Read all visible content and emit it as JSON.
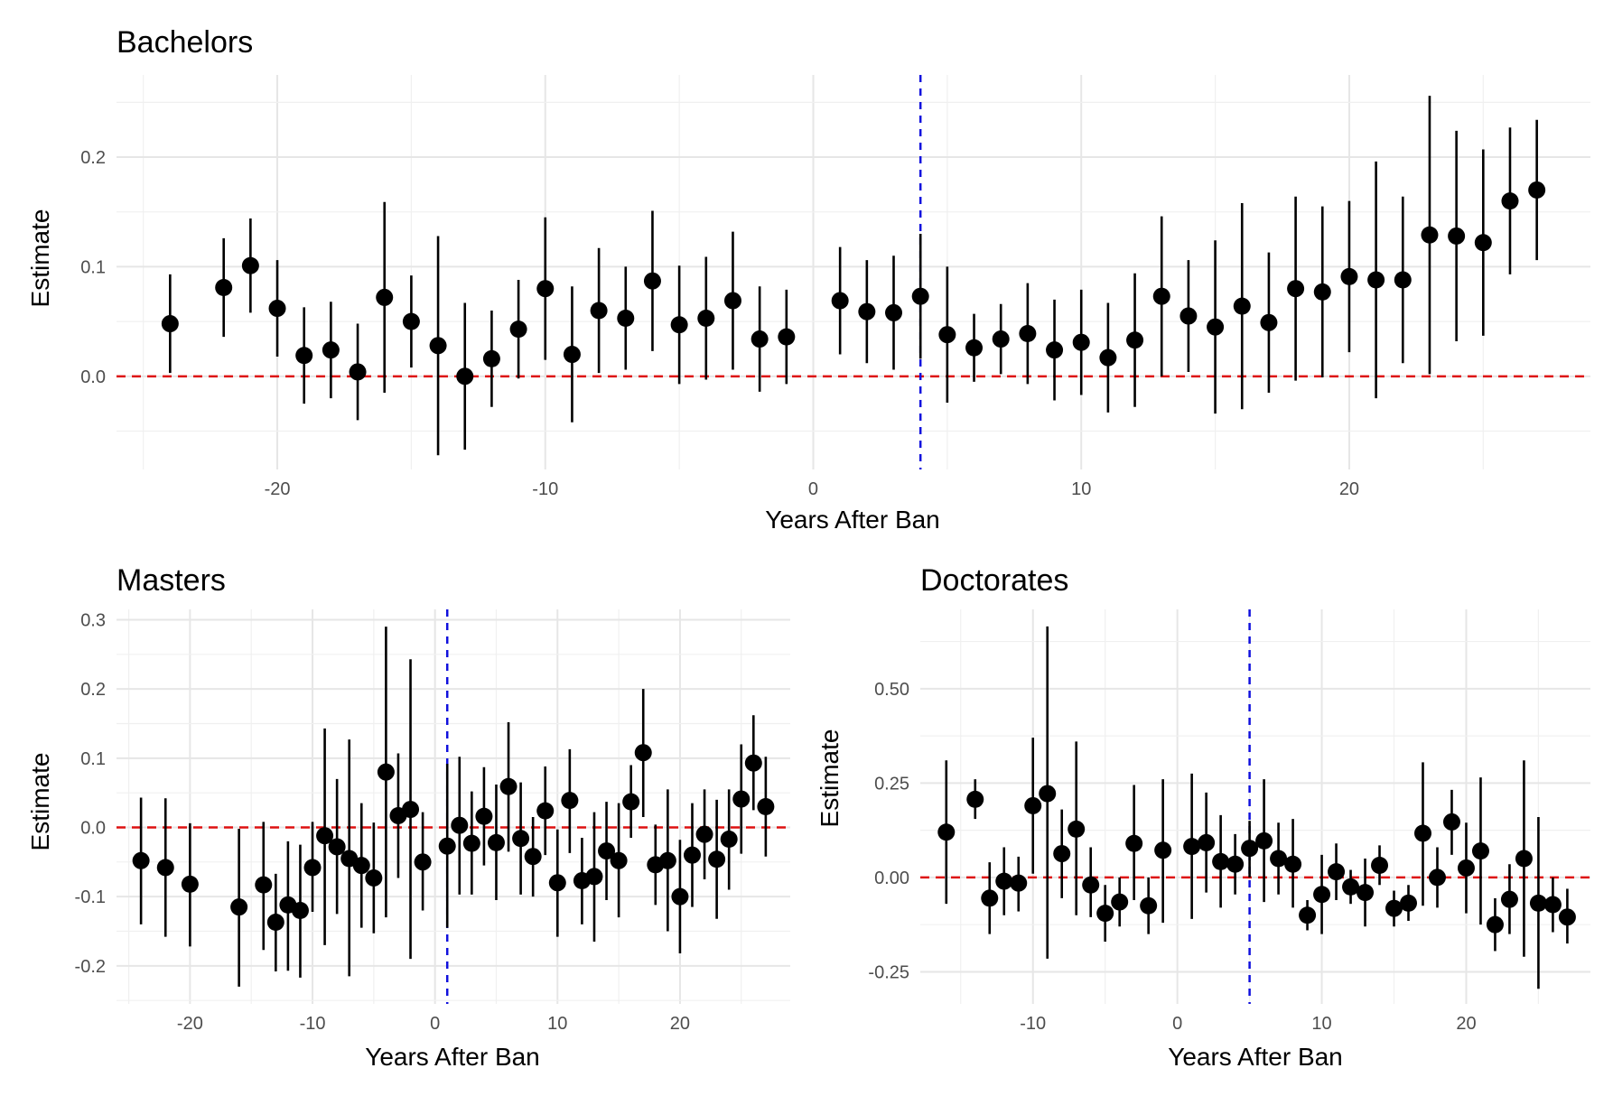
{
  "chart_data": [
    {
      "type": "scatter",
      "title": "Bachelors",
      "xlabel": "Years After Ban",
      "ylabel": "Estimate",
      "xlim": [
        -26,
        29
      ],
      "ylim": [
        -0.085,
        0.275
      ],
      "xticks": [
        -20,
        -10,
        0,
        10,
        20
      ],
      "xtick_labels": [
        "-20",
        "-10",
        "0",
        "10",
        "20"
      ],
      "yticks": [
        0.0,
        0.1,
        0.2
      ],
      "ytick_labels": [
        "0.0",
        "0.1",
        "0.2"
      ],
      "reference_hline": 0,
      "event_vline": 4,
      "grid": true,
      "points": [
        {
          "x": -24,
          "y": 0.048,
          "lo": 0.003,
          "hi": 0.093
        },
        {
          "x": -22,
          "y": 0.081,
          "lo": 0.036,
          "hi": 0.126
        },
        {
          "x": -21,
          "y": 0.101,
          "lo": 0.058,
          "hi": 0.144
        },
        {
          "x": -20,
          "y": 0.062,
          "lo": 0.018,
          "hi": 0.106
        },
        {
          "x": -19,
          "y": 0.019,
          "lo": -0.025,
          "hi": 0.063
        },
        {
          "x": -18,
          "y": 0.024,
          "lo": -0.02,
          "hi": 0.068
        },
        {
          "x": -17,
          "y": 0.004,
          "lo": -0.04,
          "hi": 0.048
        },
        {
          "x": -16,
          "y": 0.072,
          "lo": -0.015,
          "hi": 0.159
        },
        {
          "x": -15,
          "y": 0.05,
          "lo": 0.008,
          "hi": 0.092
        },
        {
          "x": -14,
          "y": 0.028,
          "lo": -0.072,
          "hi": 0.128
        },
        {
          "x": -13,
          "y": 0.0,
          "lo": -0.067,
          "hi": 0.067
        },
        {
          "x": -12,
          "y": 0.016,
          "lo": -0.028,
          "hi": 0.06
        },
        {
          "x": -11,
          "y": 0.043,
          "lo": -0.002,
          "hi": 0.088
        },
        {
          "x": -10,
          "y": 0.08,
          "lo": 0.015,
          "hi": 0.145
        },
        {
          "x": -9,
          "y": 0.02,
          "lo": -0.042,
          "hi": 0.082
        },
        {
          "x": -8,
          "y": 0.06,
          "lo": 0.003,
          "hi": 0.117
        },
        {
          "x": -7,
          "y": 0.053,
          "lo": 0.006,
          "hi": 0.1
        },
        {
          "x": -6,
          "y": 0.087,
          "lo": 0.023,
          "hi": 0.151
        },
        {
          "x": -5,
          "y": 0.047,
          "lo": -0.007,
          "hi": 0.101
        },
        {
          "x": -4,
          "y": 0.053,
          "lo": -0.003,
          "hi": 0.109
        },
        {
          "x": -3,
          "y": 0.069,
          "lo": 0.006,
          "hi": 0.132
        },
        {
          "x": -2,
          "y": 0.034,
          "lo": -0.014,
          "hi": 0.082
        },
        {
          "x": -1,
          "y": 0.036,
          "lo": -0.007,
          "hi": 0.079
        },
        {
          "x": 1,
          "y": 0.069,
          "lo": 0.02,
          "hi": 0.118
        },
        {
          "x": 2,
          "y": 0.059,
          "lo": 0.012,
          "hi": 0.106
        },
        {
          "x": 3,
          "y": 0.058,
          "lo": 0.006,
          "hi": 0.11
        },
        {
          "x": 4,
          "y": 0.073,
          "lo": 0.016,
          "hi": 0.13
        },
        {
          "x": 5,
          "y": 0.038,
          "lo": -0.024,
          "hi": 0.1
        },
        {
          "x": 6,
          "y": 0.026,
          "lo": -0.005,
          "hi": 0.057
        },
        {
          "x": 7,
          "y": 0.034,
          "lo": 0.002,
          "hi": 0.066
        },
        {
          "x": 8,
          "y": 0.039,
          "lo": -0.007,
          "hi": 0.085
        },
        {
          "x": 9,
          "y": 0.024,
          "lo": -0.022,
          "hi": 0.07
        },
        {
          "x": 10,
          "y": 0.031,
          "lo": -0.017,
          "hi": 0.079
        },
        {
          "x": 11,
          "y": 0.017,
          "lo": -0.033,
          "hi": 0.067
        },
        {
          "x": 12,
          "y": 0.033,
          "lo": -0.028,
          "hi": 0.094
        },
        {
          "x": 13,
          "y": 0.073,
          "lo": 0.0,
          "hi": 0.146
        },
        {
          "x": 14,
          "y": 0.055,
          "lo": 0.004,
          "hi": 0.106
        },
        {
          "x": 15,
          "y": 0.045,
          "lo": -0.034,
          "hi": 0.124
        },
        {
          "x": 16,
          "y": 0.064,
          "lo": -0.03,
          "hi": 0.158
        },
        {
          "x": 17,
          "y": 0.049,
          "lo": -0.015,
          "hi": 0.113
        },
        {
          "x": 18,
          "y": 0.08,
          "lo": -0.004,
          "hi": 0.164
        },
        {
          "x": 19,
          "y": 0.077,
          "lo": -0.001,
          "hi": 0.155
        },
        {
          "x": 20,
          "y": 0.091,
          "lo": 0.022,
          "hi": 0.16
        },
        {
          "x": 21,
          "y": 0.088,
          "lo": -0.02,
          "hi": 0.196
        },
        {
          "x": 22,
          "y": 0.088,
          "lo": 0.012,
          "hi": 0.164
        },
        {
          "x": 23,
          "y": 0.129,
          "lo": 0.002,
          "hi": 0.256
        },
        {
          "x": 24,
          "y": 0.128,
          "lo": 0.032,
          "hi": 0.224
        },
        {
          "x": 25,
          "y": 0.122,
          "lo": 0.037,
          "hi": 0.207
        },
        {
          "x": 26,
          "y": 0.16,
          "lo": 0.093,
          "hi": 0.227
        },
        {
          "x": 27,
          "y": 0.17,
          "lo": 0.106,
          "hi": 0.234
        }
      ]
    },
    {
      "type": "scatter",
      "title": "Masters",
      "xlabel": "Years After Ban",
      "ylabel": "Estimate",
      "xlim": [
        -26,
        29
      ],
      "ylim": [
        -0.255,
        0.315
      ],
      "xticks": [
        -20,
        -10,
        0,
        10,
        20
      ],
      "xtick_labels": [
        "-20",
        "-10",
        "0",
        "10",
        "20"
      ],
      "yticks": [
        -0.2,
        -0.1,
        0.0,
        0.1,
        0.2,
        0.3
      ],
      "ytick_labels": [
        "-0.2",
        "-0.1",
        "0.0",
        "0.1",
        "0.2",
        "0.3"
      ],
      "reference_hline": 0,
      "event_vline": 1,
      "grid": true,
      "points": [
        {
          "x": -24,
          "y": -0.048,
          "lo": -0.14,
          "hi": 0.043
        },
        {
          "x": -22,
          "y": -0.058,
          "lo": -0.158,
          "hi": 0.042
        },
        {
          "x": -20,
          "y": -0.082,
          "lo": -0.172,
          "hi": 0.006
        },
        {
          "x": -16,
          "y": -0.115,
          "lo": -0.23,
          "hi": -0.002
        },
        {
          "x": -14,
          "y": -0.083,
          "lo": -0.177,
          "hi": 0.008
        },
        {
          "x": -13,
          "y": -0.137,
          "lo": -0.208,
          "hi": -0.067
        },
        {
          "x": -12,
          "y": -0.112,
          "lo": -0.207,
          "hi": -0.02
        },
        {
          "x": -11,
          "y": -0.12,
          "lo": -0.217,
          "hi": -0.025
        },
        {
          "x": -10,
          "y": -0.058,
          "lo": -0.122,
          "hi": 0.008
        },
        {
          "x": -9,
          "y": -0.012,
          "lo": -0.17,
          "hi": 0.143
        },
        {
          "x": -8,
          "y": -0.028,
          "lo": -0.125,
          "hi": 0.07
        },
        {
          "x": -7,
          "y": -0.045,
          "lo": -0.215,
          "hi": 0.127
        },
        {
          "x": -6,
          "y": -0.055,
          "lo": -0.145,
          "hi": 0.035
        },
        {
          "x": -5,
          "y": -0.073,
          "lo": -0.153,
          "hi": 0.007
        },
        {
          "x": -4,
          "y": 0.08,
          "lo": -0.13,
          "hi": 0.29
        },
        {
          "x": -3,
          "y": 0.017,
          "lo": -0.073,
          "hi": 0.107
        },
        {
          "x": -2,
          "y": 0.026,
          "lo": -0.19,
          "hi": 0.243
        },
        {
          "x": -1,
          "y": -0.05,
          "lo": -0.12,
          "hi": 0.022
        },
        {
          "x": 1,
          "y": -0.027,
          "lo": -0.145,
          "hi": 0.092
        },
        {
          "x": 2,
          "y": 0.003,
          "lo": -0.097,
          "hi": 0.102
        },
        {
          "x": 3,
          "y": -0.023,
          "lo": -0.097,
          "hi": 0.052
        },
        {
          "x": 4,
          "y": 0.016,
          "lo": -0.055,
          "hi": 0.087
        },
        {
          "x": 5,
          "y": -0.022,
          "lo": -0.105,
          "hi": 0.062
        },
        {
          "x": 6,
          "y": 0.059,
          "lo": -0.035,
          "hi": 0.152
        },
        {
          "x": 7,
          "y": -0.016,
          "lo": -0.097,
          "hi": 0.065
        },
        {
          "x": 8,
          "y": -0.042,
          "lo": -0.1,
          "hi": 0.015
        },
        {
          "x": 9,
          "y": 0.024,
          "lo": -0.04,
          "hi": 0.088
        },
        {
          "x": 10,
          "y": -0.08,
          "lo": -0.158,
          "hi": -0.003
        },
        {
          "x": 11,
          "y": 0.039,
          "lo": -0.037,
          "hi": 0.113
        },
        {
          "x": 12,
          "y": -0.077,
          "lo": -0.14,
          "hi": -0.015
        },
        {
          "x": 13,
          "y": -0.071,
          "lo": -0.165,
          "hi": 0.022
        },
        {
          "x": 14,
          "y": -0.034,
          "lo": -0.105,
          "hi": 0.037
        },
        {
          "x": 15,
          "y": -0.048,
          "lo": -0.13,
          "hi": 0.035
        },
        {
          "x": 16,
          "y": 0.037,
          "lo": -0.015,
          "hi": 0.09
        },
        {
          "x": 17,
          "y": 0.108,
          "lo": 0.015,
          "hi": 0.2
        },
        {
          "x": 18,
          "y": -0.054,
          "lo": -0.112,
          "hi": 0.004
        },
        {
          "x": 19,
          "y": -0.048,
          "lo": -0.15,
          "hi": 0.055
        },
        {
          "x": 20,
          "y": -0.1,
          "lo": -0.182,
          "hi": -0.018
        },
        {
          "x": 21,
          "y": -0.04,
          "lo": -0.115,
          "hi": 0.035
        },
        {
          "x": 22,
          "y": -0.01,
          "lo": -0.075,
          "hi": 0.055
        },
        {
          "x": 23,
          "y": -0.046,
          "lo": -0.132,
          "hi": 0.04
        },
        {
          "x": 24,
          "y": -0.017,
          "lo": -0.09,
          "hi": 0.055
        },
        {
          "x": 25,
          "y": 0.041,
          "lo": -0.038,
          "hi": 0.12
        },
        {
          "x": 26,
          "y": 0.093,
          "lo": 0.025,
          "hi": 0.162
        },
        {
          "x": 27,
          "y": 0.03,
          "lo": -0.042,
          "hi": 0.102
        }
      ]
    },
    {
      "type": "scatter",
      "title": "Doctorates",
      "xlabel": "Years After Ban",
      "ylabel": "Estimate",
      "xlim": [
        -17.8,
        28.6
      ],
      "ylim": [
        -0.335,
        0.71
      ],
      "xticks": [
        -10,
        0,
        10,
        20
      ],
      "xtick_labels": [
        "-10",
        "0",
        "10",
        "20"
      ],
      "yticks": [
        -0.25,
        0.0,
        0.25,
        0.5
      ],
      "ytick_labels": [
        "-0.25",
        "0.00",
        "0.25",
        "0.50"
      ],
      "reference_hline": 0,
      "event_vline": 5,
      "grid": true,
      "points": [
        {
          "x": -16,
          "y": 0.12,
          "lo": -0.07,
          "hi": 0.31
        },
        {
          "x": -14,
          "y": 0.207,
          "lo": 0.155,
          "hi": 0.26
        },
        {
          "x": -13,
          "y": -0.055,
          "lo": -0.15,
          "hi": 0.04
        },
        {
          "x": -12,
          "y": -0.01,
          "lo": -0.1,
          "hi": 0.08
        },
        {
          "x": -11,
          "y": -0.015,
          "lo": -0.09,
          "hi": 0.055
        },
        {
          "x": -10,
          "y": 0.19,
          "lo": 0.01,
          "hi": 0.37
        },
        {
          "x": -9,
          "y": 0.222,
          "lo": -0.215,
          "hi": 0.665
        },
        {
          "x": -8,
          "y": 0.063,
          "lo": -0.055,
          "hi": 0.18
        },
        {
          "x": -7,
          "y": 0.128,
          "lo": -0.1,
          "hi": 0.36
        },
        {
          "x": -6,
          "y": -0.02,
          "lo": -0.105,
          "hi": 0.08
        },
        {
          "x": -5,
          "y": -0.095,
          "lo": -0.17,
          "hi": -0.02
        },
        {
          "x": -4,
          "y": -0.065,
          "lo": -0.13,
          "hi": 0.0
        },
        {
          "x": -3,
          "y": 0.09,
          "lo": -0.06,
          "hi": 0.245
        },
        {
          "x": -2,
          "y": -0.075,
          "lo": -0.15,
          "hi": 0.0
        },
        {
          "x": -1,
          "y": 0.072,
          "lo": -0.12,
          "hi": 0.26
        },
        {
          "x": 1,
          "y": 0.082,
          "lo": -0.11,
          "hi": 0.275
        },
        {
          "x": 2,
          "y": 0.092,
          "lo": -0.04,
          "hi": 0.225
        },
        {
          "x": 3,
          "y": 0.042,
          "lo": -0.08,
          "hi": 0.165
        },
        {
          "x": 4,
          "y": 0.035,
          "lo": -0.045,
          "hi": 0.115
        },
        {
          "x": 5,
          "y": 0.077,
          "lo": 0.0,
          "hi": 0.15
        },
        {
          "x": 6,
          "y": 0.097,
          "lo": -0.065,
          "hi": 0.26
        },
        {
          "x": 7,
          "y": 0.05,
          "lo": -0.045,
          "hi": 0.145
        },
        {
          "x": 8,
          "y": 0.035,
          "lo": -0.08,
          "hi": 0.155
        },
        {
          "x": 9,
          "y": -0.1,
          "lo": -0.14,
          "hi": -0.06
        },
        {
          "x": 10,
          "y": -0.045,
          "lo": -0.15,
          "hi": 0.06
        },
        {
          "x": 11,
          "y": 0.015,
          "lo": -0.06,
          "hi": 0.09
        },
        {
          "x": 12,
          "y": -0.025,
          "lo": -0.07,
          "hi": 0.02
        },
        {
          "x": 13,
          "y": -0.04,
          "lo": -0.13,
          "hi": 0.05
        },
        {
          "x": 14,
          "y": 0.032,
          "lo": -0.02,
          "hi": 0.085
        },
        {
          "x": 15,
          "y": -0.082,
          "lo": -0.13,
          "hi": -0.035
        },
        {
          "x": 16,
          "y": -0.068,
          "lo": -0.115,
          "hi": -0.02
        },
        {
          "x": 17,
          "y": 0.117,
          "lo": -0.075,
          "hi": 0.305
        },
        {
          "x": 18,
          "y": 0.0,
          "lo": -0.08,
          "hi": 0.08
        },
        {
          "x": 19,
          "y": 0.147,
          "lo": 0.06,
          "hi": 0.232
        },
        {
          "x": 20,
          "y": 0.025,
          "lo": -0.095,
          "hi": 0.145
        },
        {
          "x": 21,
          "y": 0.07,
          "lo": -0.125,
          "hi": 0.265
        },
        {
          "x": 22,
          "y": -0.125,
          "lo": -0.195,
          "hi": -0.055
        },
        {
          "x": 23,
          "y": -0.058,
          "lo": -0.15,
          "hi": 0.035
        },
        {
          "x": 24,
          "y": 0.05,
          "lo": -0.21,
          "hi": 0.31
        },
        {
          "x": 25,
          "y": -0.068,
          "lo": -0.295,
          "hi": 0.16
        },
        {
          "x": 26,
          "y": -0.072,
          "lo": -0.145,
          "hi": 0.0
        },
        {
          "x": 27,
          "y": -0.105,
          "lo": -0.175,
          "hi": -0.03
        }
      ]
    }
  ]
}
